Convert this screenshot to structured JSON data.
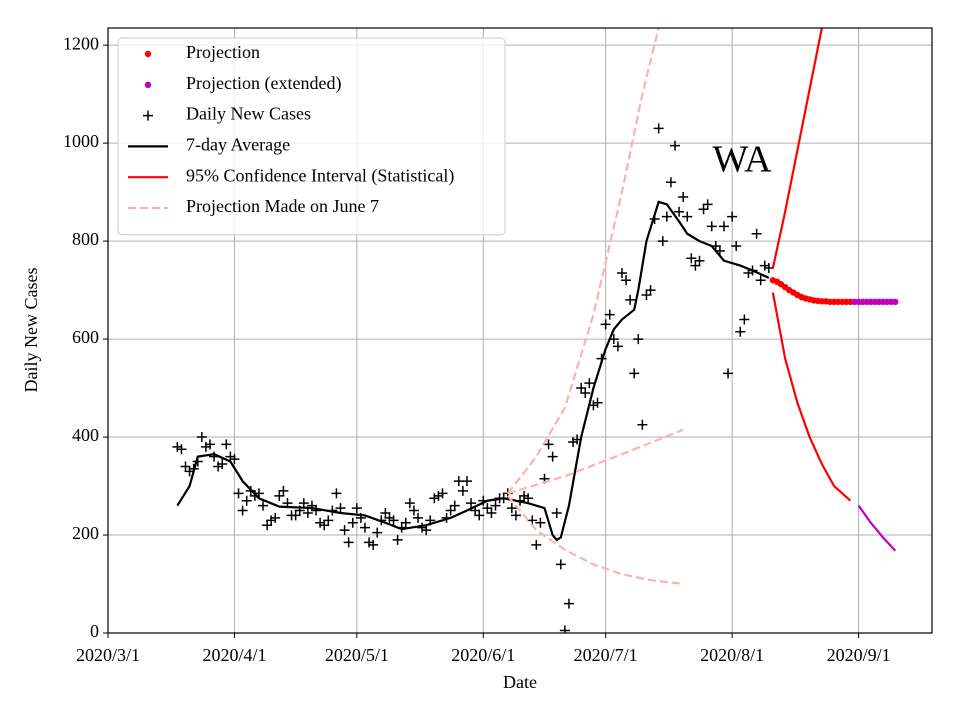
{
  "chart_data": {
    "type": "line",
    "xlabel": "Date",
    "ylabel": "Daily New Cases",
    "annotation": "WA",
    "xlim": [
      "2020-03-01",
      "2020-09-19"
    ],
    "ylim": [
      0,
      1235
    ],
    "xticks": [
      {
        "value": "2020-03-01",
        "label": "2020/3/1"
      },
      {
        "value": "2020-04-01",
        "label": "2020/4/1"
      },
      {
        "value": "2020-05-01",
        "label": "2020/5/1"
      },
      {
        "value": "2020-06-01",
        "label": "2020/6/1"
      },
      {
        "value": "2020-07-01",
        "label": "2020/7/1"
      },
      {
        "value": "2020-08-01",
        "label": "2020/8/1"
      },
      {
        "value": "2020-09-01",
        "label": "2020/9/1"
      }
    ],
    "yticks": [
      0,
      200,
      400,
      600,
      800,
      1000,
      1200
    ],
    "grid": true,
    "legend": "upper left",
    "series": [
      {
        "name": "Projection",
        "color": "#ff0000",
        "marker": "o",
        "x": [
          "2020-08-11",
          "2020-08-12",
          "2020-08-13",
          "2020-08-14",
          "2020-08-15",
          "2020-08-16",
          "2020-08-17",
          "2020-08-18",
          "2020-08-19",
          "2020-08-20",
          "2020-08-21",
          "2020-08-22",
          "2020-08-23",
          "2020-08-24",
          "2020-08-25",
          "2020-08-26",
          "2020-08-27",
          "2020-08-28",
          "2020-08-29",
          "2020-08-30"
        ],
        "values": [
          720,
          717,
          712,
          706,
          700,
          695,
          690,
          686,
          683,
          681,
          679,
          678,
          677,
          677,
          676,
          676,
          676,
          676,
          676,
          676
        ]
      },
      {
        "name": "Projection (extended)",
        "color": "#bf00bf",
        "marker": "o",
        "x": [
          "2020-08-31",
          "2020-09-01",
          "2020-09-02",
          "2020-09-03",
          "2020-09-04",
          "2020-09-05",
          "2020-09-06",
          "2020-09-07",
          "2020-09-08",
          "2020-09-09",
          "2020-09-10"
        ],
        "values": [
          676,
          676,
          676,
          676,
          676,
          676,
          676,
          676,
          676,
          676,
          676
        ]
      },
      {
        "name": "Daily New Cases",
        "color": "#000000",
        "marker": "+",
        "x": [
          "2020-03-18",
          "2020-03-19",
          "2020-03-20",
          "2020-03-21",
          "2020-03-22",
          "2020-03-23",
          "2020-03-24",
          "2020-03-25",
          "2020-03-26",
          "2020-03-27",
          "2020-03-28",
          "2020-03-29",
          "2020-03-30",
          "2020-03-31",
          "2020-04-01",
          "2020-04-02",
          "2020-04-03",
          "2020-04-04",
          "2020-04-05",
          "2020-04-06",
          "2020-04-07",
          "2020-04-08",
          "2020-04-09",
          "2020-04-10",
          "2020-04-11",
          "2020-04-12",
          "2020-04-13",
          "2020-04-14",
          "2020-04-15",
          "2020-04-16",
          "2020-04-17",
          "2020-04-18",
          "2020-04-19",
          "2020-04-20",
          "2020-04-21",
          "2020-04-22",
          "2020-04-23",
          "2020-04-24",
          "2020-04-25",
          "2020-04-26",
          "2020-04-27",
          "2020-04-28",
          "2020-04-29",
          "2020-04-30",
          "2020-05-01",
          "2020-05-02",
          "2020-05-03",
          "2020-05-04",
          "2020-05-05",
          "2020-05-06",
          "2020-05-07",
          "2020-05-08",
          "2020-05-09",
          "2020-05-10",
          "2020-05-11",
          "2020-05-12",
          "2020-05-13",
          "2020-05-14",
          "2020-05-15",
          "2020-05-16",
          "2020-05-17",
          "2020-05-18",
          "2020-05-19",
          "2020-05-20",
          "2020-05-21",
          "2020-05-22",
          "2020-05-23",
          "2020-05-24",
          "2020-05-25",
          "2020-05-26",
          "2020-05-27",
          "2020-05-28",
          "2020-05-29",
          "2020-05-30",
          "2020-05-31",
          "2020-06-01",
          "2020-06-02",
          "2020-06-03",
          "2020-06-04",
          "2020-06-05",
          "2020-06-06",
          "2020-06-07",
          "2020-06-08",
          "2020-06-09",
          "2020-06-10",
          "2020-06-11",
          "2020-06-12",
          "2020-06-13",
          "2020-06-14",
          "2020-06-15",
          "2020-06-16",
          "2020-06-17",
          "2020-06-18",
          "2020-06-19",
          "2020-06-20",
          "2020-06-21",
          "2020-06-22",
          "2020-06-23",
          "2020-06-24",
          "2020-06-25",
          "2020-06-26",
          "2020-06-27",
          "2020-06-28",
          "2020-06-29",
          "2020-06-30",
          "2020-07-01",
          "2020-07-02",
          "2020-07-03",
          "2020-07-04",
          "2020-07-05",
          "2020-07-06",
          "2020-07-07",
          "2020-07-08",
          "2020-07-09",
          "2020-07-10",
          "2020-07-11",
          "2020-07-12",
          "2020-07-13",
          "2020-07-14",
          "2020-07-15",
          "2020-07-16",
          "2020-07-17",
          "2020-07-18",
          "2020-07-19",
          "2020-07-20",
          "2020-07-21",
          "2020-07-22",
          "2020-07-23",
          "2020-07-24",
          "2020-07-25",
          "2020-07-26",
          "2020-07-27",
          "2020-07-28",
          "2020-07-29",
          "2020-07-30",
          "2020-07-31",
          "2020-08-01",
          "2020-08-02",
          "2020-08-03",
          "2020-08-04",
          "2020-08-05",
          "2020-08-06",
          "2020-08-07",
          "2020-08-08",
          "2020-08-09",
          "2020-08-10"
        ],
        "values": [
          380,
          375,
          340,
          330,
          335,
          350,
          400,
          380,
          385,
          360,
          340,
          345,
          385,
          360,
          355,
          285,
          250,
          270,
          290,
          280,
          285,
          260,
          220,
          230,
          235,
          280,
          290,
          265,
          240,
          240,
          250,
          265,
          245,
          260,
          250,
          225,
          220,
          230,
          250,
          285,
          255,
          210,
          185,
          225,
          255,
          235,
          215,
          185,
          180,
          205,
          230,
          245,
          235,
          230,
          190,
          215,
          225,
          265,
          250,
          235,
          215,
          210,
          230,
          275,
          280,
          285,
          235,
          250,
          260,
          310,
          290,
          310,
          265,
          250,
          240,
          270,
          255,
          245,
          260,
          275,
          275,
          285,
          255,
          240,
          270,
          280,
          275,
          230,
          180,
          225,
          315,
          385,
          360,
          245,
          140,
          5,
          60,
          390,
          395,
          500,
          490,
          510,
          465,
          470,
          560,
          630,
          650,
          600,
          585,
          735,
          720,
          680,
          530,
          600,
          425,
          690,
          700,
          845,
          1030,
          800,
          850,
          920,
          995,
          860,
          890,
          850,
          765,
          750,
          760,
          865,
          875,
          830,
          790,
          780,
          830,
          530,
          850,
          790,
          615,
          640,
          735,
          740,
          815,
          720,
          750,
          745
        ]
      },
      {
        "name": "7-day Average",
        "color": "#000000",
        "linestyle": "-",
        "x": [
          "2020-03-18",
          "2020-03-21",
          "2020-03-23",
          "2020-03-27",
          "2020-03-31",
          "2020-04-03",
          "2020-04-07",
          "2020-04-12",
          "2020-04-20",
          "2020-04-27",
          "2020-05-03",
          "2020-05-08",
          "2020-05-12",
          "2020-05-18",
          "2020-05-24",
          "2020-05-28",
          "2020-06-02",
          "2020-06-06",
          "2020-06-12",
          "2020-06-16",
          "2020-06-18",
          "2020-06-19",
          "2020-06-20",
          "2020-06-22",
          "2020-06-25",
          "2020-06-28",
          "2020-07-01",
          "2020-07-03",
          "2020-07-05",
          "2020-07-08",
          "2020-07-09",
          "2020-07-11",
          "2020-07-14",
          "2020-07-16",
          "2020-07-19",
          "2020-07-21",
          "2020-07-24",
          "2020-07-27",
          "2020-07-30",
          "2020-08-03",
          "2020-08-06",
          "2020-08-10"
        ],
        "values": [
          260,
          300,
          360,
          365,
          350,
          310,
          275,
          258,
          255,
          245,
          240,
          225,
          212,
          220,
          235,
          250,
          270,
          275,
          265,
          255,
          200,
          190,
          195,
          260,
          400,
          500,
          580,
          620,
          640,
          660,
          700,
          800,
          880,
          875,
          840,
          815,
          800,
          790,
          760,
          750,
          740,
          725
        ]
      },
      {
        "name": "95% Confidence Interval (Statistical)",
        "color": "#ff0000",
        "linestyle": "-",
        "lines": [
          {
            "color": "#ff0000",
            "x": [
              "2020-08-11",
              "2020-08-14",
              "2020-08-17",
              "2020-08-20",
              "2020-08-23"
            ],
            "values": [
              745,
              860,
              985,
              1110,
              1235
            ]
          },
          {
            "color": "#ff0000",
            "x": [
              "2020-08-11",
              "2020-08-14",
              "2020-08-17",
              "2020-08-20",
              "2020-08-23",
              "2020-08-26",
              "2020-08-30"
            ],
            "values": [
              695,
              560,
              470,
              400,
              345,
              300,
              270
            ]
          },
          {
            "color": "#bf00bf",
            "x": [
              "2020-09-01",
              "2020-09-04",
              "2020-09-07",
              "2020-09-10"
            ],
            "values": [
              260,
              225,
              195,
              168
            ]
          }
        ]
      },
      {
        "name": "Projection Made on June 7",
        "color": "#ffb0b0",
        "linestyle": "--",
        "lines": [
          {
            "color": "#ffb0b0",
            "x": [
              "2020-06-07",
              "2020-06-14",
              "2020-06-21",
              "2020-06-28",
              "2020-07-05",
              "2020-07-10",
              "2020-07-14"
            ],
            "values": [
              285,
              360,
              460,
              650,
              900,
              1100,
              1235
            ]
          },
          {
            "color": "#ffb0b0",
            "x": [
              "2020-06-07",
              "2020-06-21",
              "2020-07-05",
              "2020-07-20"
            ],
            "values": [
              285,
              320,
              365,
              415
            ]
          },
          {
            "color": "#ffb0b0",
            "x": [
              "2020-06-07",
              "2020-06-14",
              "2020-06-21",
              "2020-06-28",
              "2020-07-05",
              "2020-07-12",
              "2020-07-20"
            ],
            "values": [
              280,
              210,
              170,
              140,
              120,
              108,
              100
            ]
          }
        ]
      }
    ]
  }
}
